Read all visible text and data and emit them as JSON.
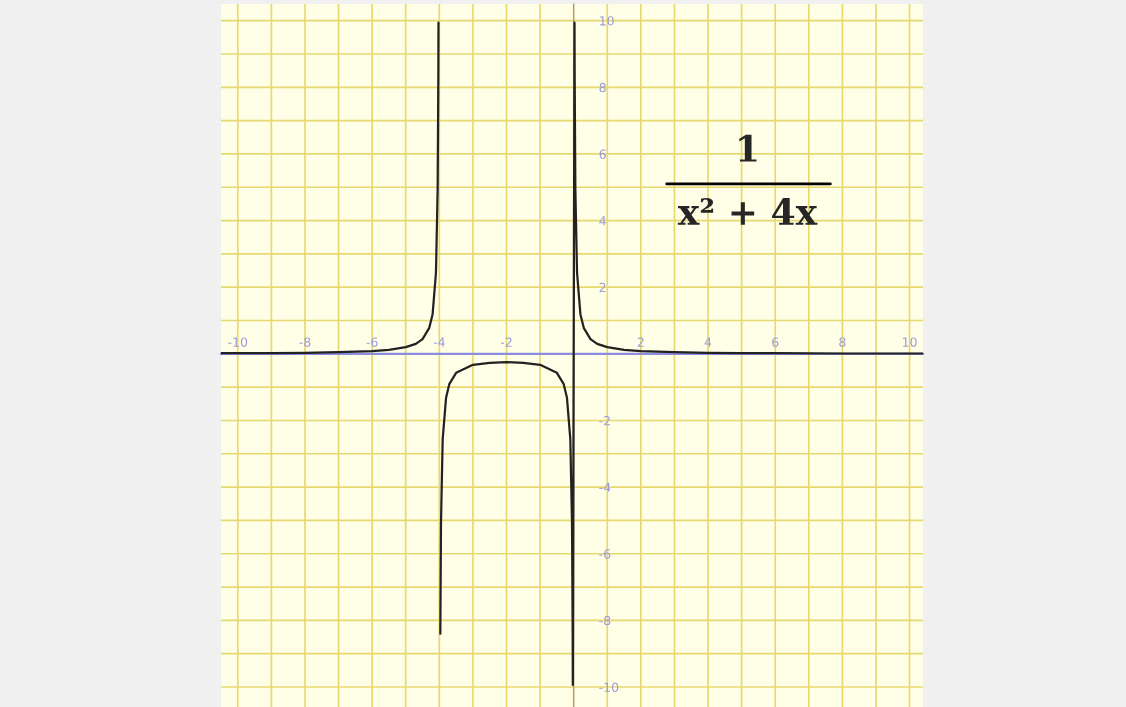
{
  "chart_data": {
    "type": "line",
    "annotations": [
      "1",
      "x² + 4x"
    ],
    "series": [
      {
        "color": "#222222",
        "x": [
          -10.5,
          -10,
          -9,
          -8,
          -7,
          -6,
          -5.5,
          -5,
          -4.7,
          -4.5,
          -4.3,
          -4.2,
          -4.1,
          -4.05,
          -4.03,
          -4.025,
          -3.975,
          -3.97,
          -3.95,
          -3.9,
          -3.8,
          -3.7,
          -3.5,
          -3,
          -2.5,
          -2,
          -1.5,
          -1,
          -0.5,
          -0.3,
          -0.2,
          -0.1,
          -0.05,
          -0.03,
          -0.025,
          0.025,
          0.03,
          0.05,
          0.1,
          0.2,
          0.3,
          0.5,
          0.7,
          1,
          1.5,
          2,
          3,
          4,
          5,
          6,
          8,
          10,
          10.4
        ],
        "values": [
          0.02,
          0.02,
          0.02,
          0.03,
          0.05,
          0.08,
          0.12,
          0.2,
          0.3,
          0.44,
          0.78,
          1.19,
          2.44,
          4.94,
          8.27,
          9.94,
          null,
          -8.4,
          -5.06,
          -2.56,
          -1.32,
          -0.9,
          -0.57,
          -0.33,
          -0.27,
          -0.25,
          -0.27,
          -0.33,
          -0.57,
          -0.9,
          -1.32,
          -2.56,
          -5.06,
          -8.4,
          -9.94,
          9.94,
          8.27,
          4.94,
          2.44,
          1.19,
          0.78,
          0.44,
          0.3,
          0.2,
          0.12,
          0.08,
          0.05,
          0.03,
          0.02,
          0.02,
          0.01,
          0.01,
          0.01
        ]
      }
    ],
    "xlim": [
      -10.5,
      10.4
    ],
    "ylim": [
      -10.6,
      10.5
    ],
    "xticks": [
      {
        "value": -10,
        "label": "-10"
      },
      {
        "value": -9,
        "label": null
      },
      {
        "value": -8,
        "label": "-8"
      },
      {
        "value": -7,
        "label": null
      },
      {
        "value": -6,
        "label": "-6"
      },
      {
        "value": -5,
        "label": null
      },
      {
        "value": -4,
        "label": "-4"
      },
      {
        "value": -3,
        "label": null
      },
      {
        "value": -2,
        "label": "-2"
      },
      {
        "value": -1,
        "label": null
      },
      {
        "value": 0,
        "label": null
      },
      {
        "value": 1,
        "label": null
      },
      2,
      {
        "value": 3,
        "label": null
      },
      4,
      {
        "value": 5,
        "label": null
      },
      6,
      {
        "value": 7,
        "label": null
      },
      8,
      {
        "value": 9,
        "label": null
      },
      10
    ],
    "yticks": [
      {
        "value": -10,
        "label": "-10"
      },
      {
        "value": -9,
        "label": null
      },
      {
        "value": -8,
        "label": "-8"
      },
      {
        "value": -7,
        "label": null
      },
      {
        "value": -6,
        "label": "-6"
      },
      {
        "value": -5,
        "label": null
      },
      {
        "value": -4,
        "label": "-4"
      },
      {
        "value": -3,
        "label": null
      },
      {
        "value": -2,
        "label": "-2"
      },
      {
        "value": -1,
        "label": null
      },
      {
        "value": 0,
        "label": null
      },
      {
        "value": 1,
        "label": null
      },
      2,
      {
        "value": 3,
        "label": null
      },
      4,
      {
        "value": 5,
        "label": null
      },
      6,
      {
        "value": 7,
        "label": null
      },
      8,
      {
        "value": 9,
        "label": null
      },
      10
    ],
    "grid": true,
    "marker": "none",
    "line_style": "solid"
  }
}
